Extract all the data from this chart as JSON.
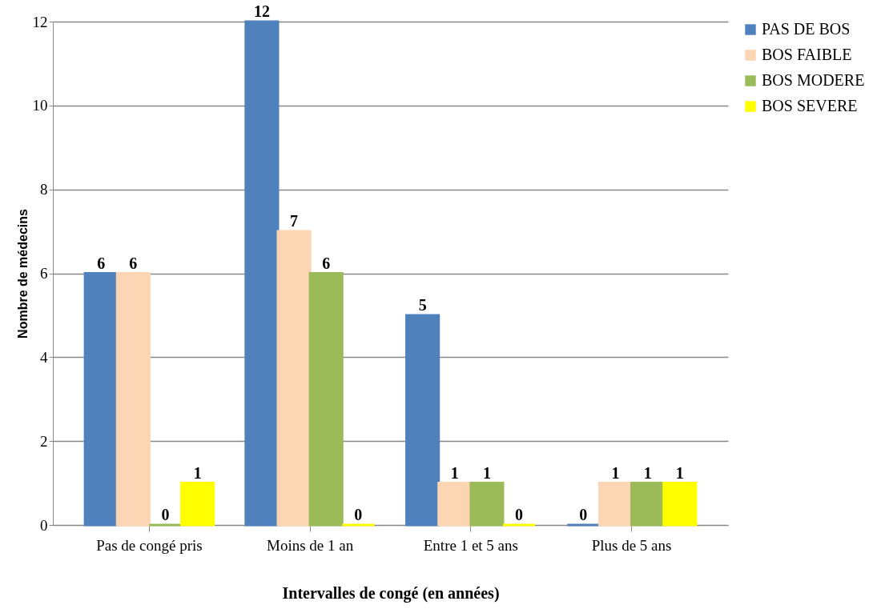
{
  "chart_data": {
    "type": "bar",
    "xlabel": "Intervalles de congé (en années)",
    "ylabel": "Nombre de médecins",
    "categories": [
      "Pas de congé pris",
      "Moins de 1 an",
      "Entre 1 et 5 ans",
      "Plus de 5 ans"
    ],
    "series": [
      {
        "name": "PAS DE BOS",
        "color": "#4f81bd",
        "values": [
          6,
          12,
          5,
          0
        ]
      },
      {
        "name": "BOS FAIBLE",
        "color": "#fcd5b5",
        "values": [
          6,
          7,
          1,
          1
        ]
      },
      {
        "name": "BOS MODERE",
        "color": "#9bbb59",
        "values": [
          0,
          6,
          1,
          1
        ]
      },
      {
        "name": "BOS SEVERE",
        "color": "#ffff00",
        "values": [
          1,
          0,
          0,
          1
        ]
      }
    ],
    "ylim": [
      0,
      12
    ],
    "yticks": [
      0,
      2,
      4,
      6,
      8,
      10,
      12
    ],
    "grid": "y",
    "legend": "right",
    "data_labels": true
  }
}
